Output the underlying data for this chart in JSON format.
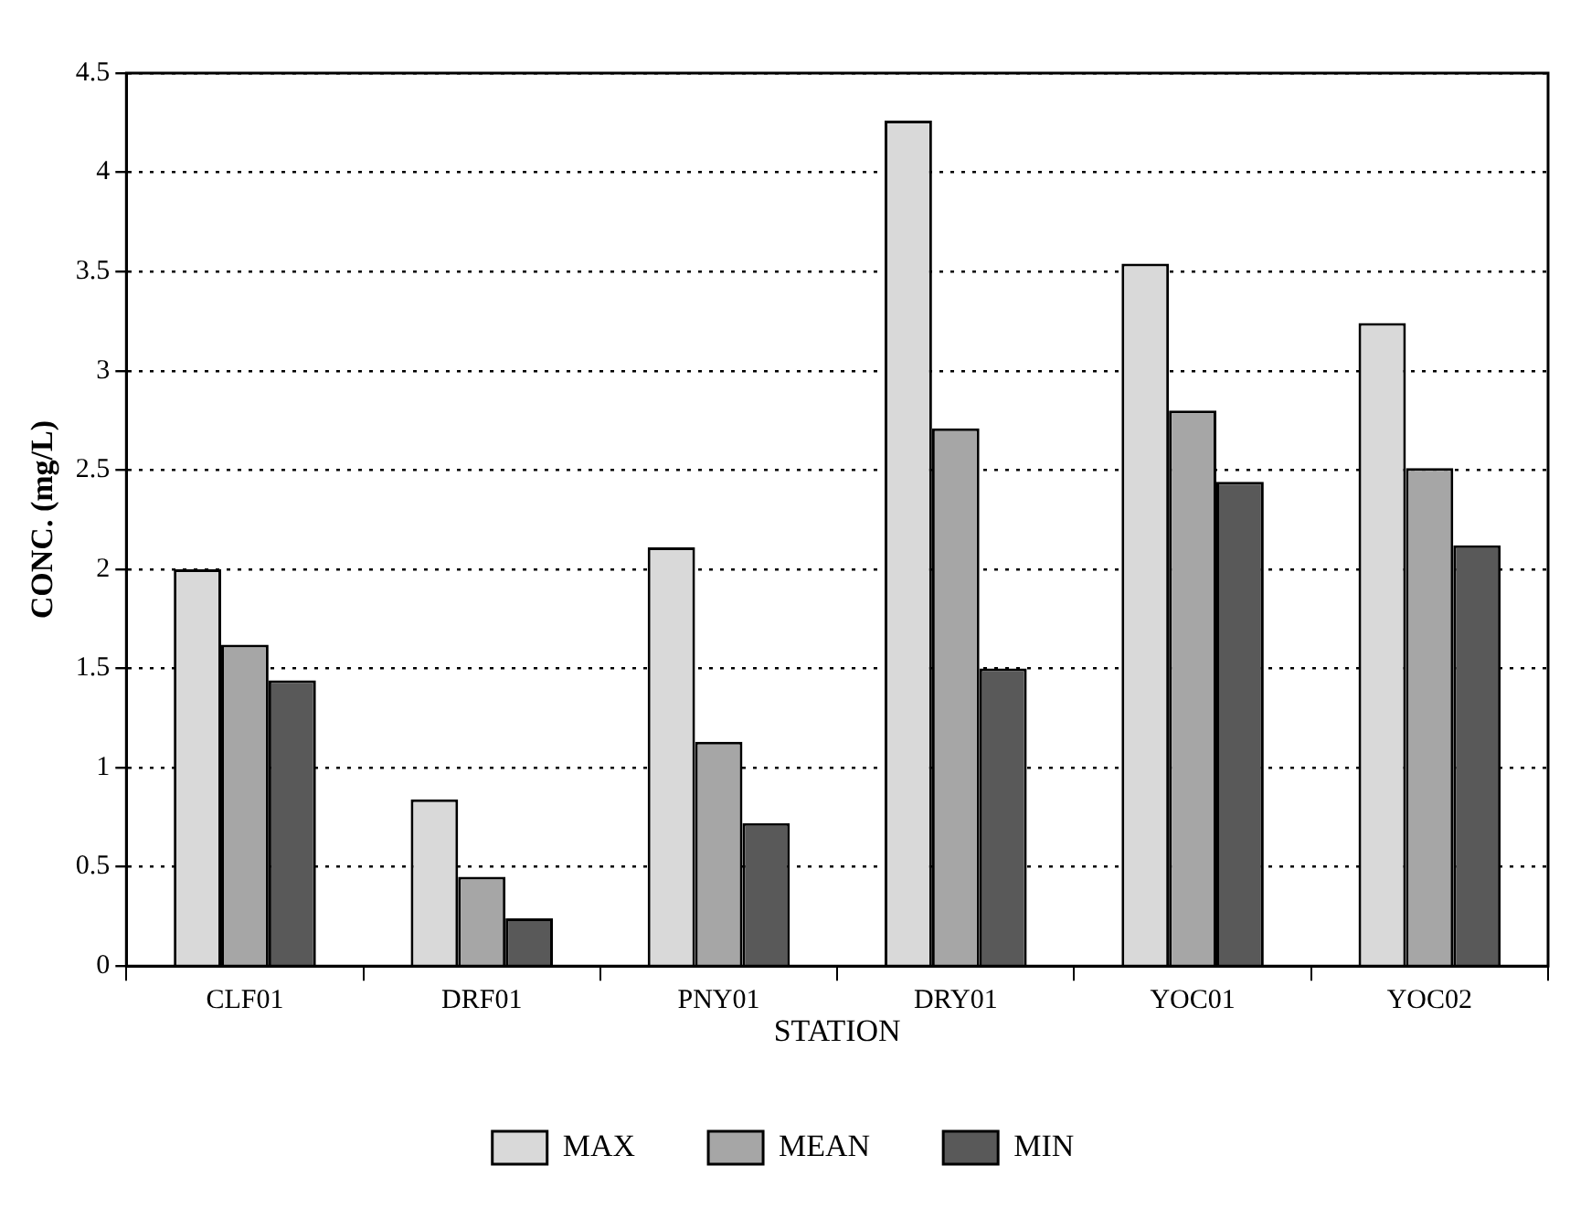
{
  "chart_data": {
    "type": "bar",
    "xlabel": "STATION",
    "ylabel": "CONC. (mg/L)",
    "categories": [
      "CLF01",
      "DRF01",
      "PNY01",
      "DRY01",
      "YOC01",
      "YOC02"
    ],
    "series": [
      {
        "name": "MAX",
        "color": "#d9d9d9",
        "values": [
          2.0,
          0.84,
          2.11,
          4.26,
          3.54,
          3.24
        ]
      },
      {
        "name": "MEAN",
        "color": "#a6a6a6",
        "values": [
          1.62,
          0.45,
          1.13,
          2.71,
          2.8,
          2.51
        ]
      },
      {
        "name": "MIN",
        "color": "#595959",
        "values": [
          1.44,
          0.24,
          0.72,
          1.5,
          2.44,
          2.12
        ]
      }
    ],
    "ylim": [
      0,
      4.5
    ],
    "yticks": [
      0,
      0.5,
      1,
      1.5,
      2,
      2.5,
      3,
      3.5,
      4,
      4.5
    ],
    "grid": "y",
    "legend": "bottom"
  }
}
